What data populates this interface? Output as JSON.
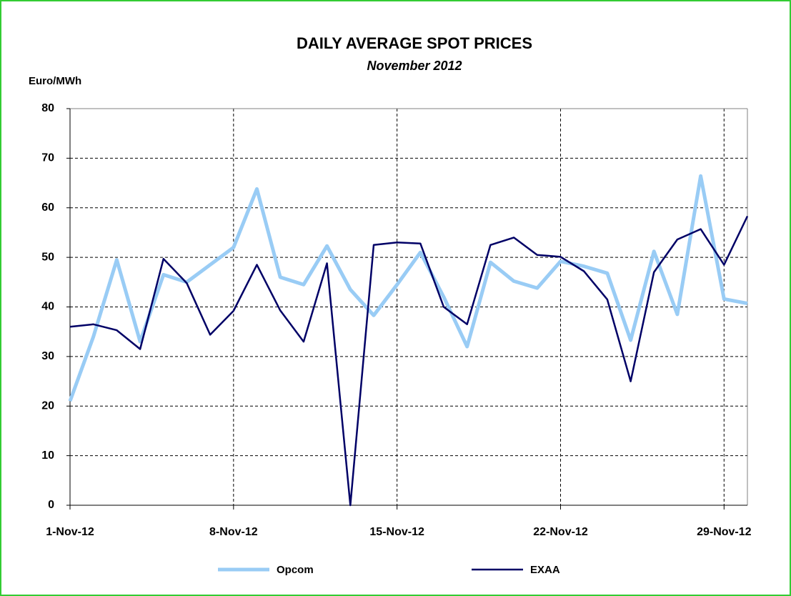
{
  "chart_data": {
    "type": "line",
    "title": "DAILY AVERAGE SPOT PRICES",
    "subtitle": "November 2012",
    "y_label": "Euro/MWh",
    "categories": [
      "1-Nov-12",
      null,
      null,
      null,
      null,
      null,
      null,
      "8-Nov-12",
      null,
      null,
      null,
      null,
      null,
      null,
      "15-Nov-12",
      null,
      null,
      null,
      null,
      null,
      null,
      "22-Nov-12",
      null,
      null,
      null,
      null,
      null,
      null,
      "29-Nov-12",
      null
    ],
    "series": [
      {
        "name": "Opcom",
        "color": "#99ccf5",
        "values": [
          21,
          34,
          49.5,
          33,
          46.5,
          45,
          48.5,
          52,
          63.8,
          46,
          44.5,
          52.3,
          43.5,
          38.3,
          44.5,
          51,
          42,
          32,
          49,
          45.2,
          43.8,
          49.2,
          48.2,
          46.8,
          33.3,
          51.2,
          38.5,
          66.4,
          41.6,
          40.7
        ]
      },
      {
        "name": "EXAA",
        "color": "#000066",
        "values": [
          36,
          36.5,
          35.3,
          31.5,
          49.7,
          44.8,
          34.4,
          39.2,
          48.5,
          39.3,
          33,
          48.8,
          0,
          52.5,
          53,
          52.8,
          40,
          36.5,
          52.5,
          54,
          50.5,
          50.1,
          47.2,
          41.5,
          25,
          47,
          53.6,
          55.7,
          48.5,
          58.3
        ]
      }
    ],
    "ylim": [
      0,
      80
    ],
    "yticks": [
      0,
      10,
      20,
      30,
      40,
      50,
      60,
      70,
      80
    ],
    "grid": true,
    "legend": "bottom"
  }
}
